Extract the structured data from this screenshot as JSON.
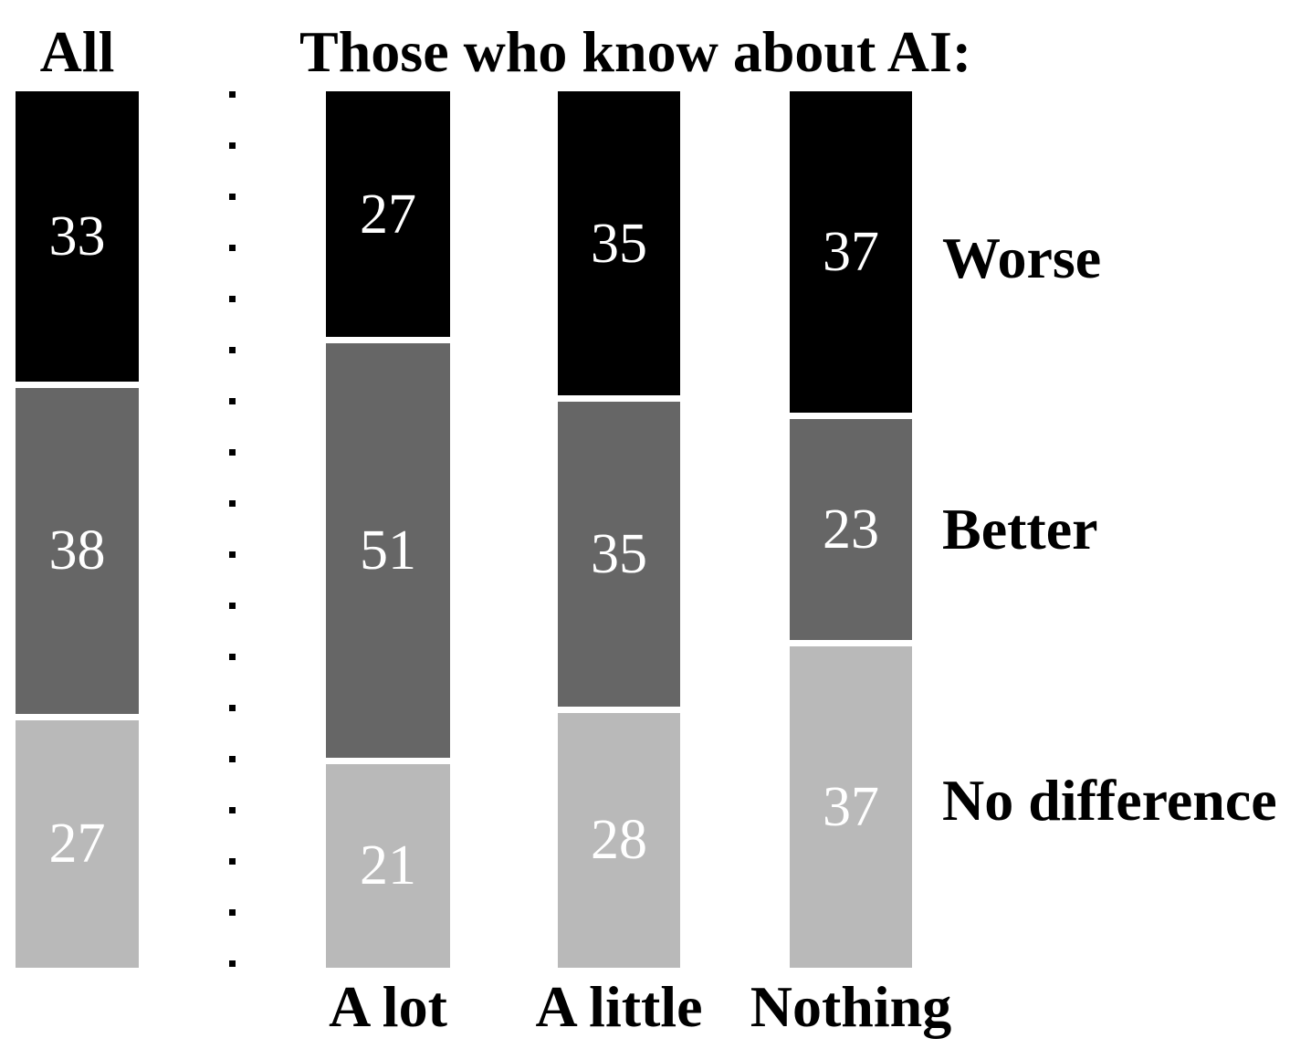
{
  "chart_data": {
    "type": "bar",
    "stacked": true,
    "orientation": "vertical",
    "title": "Those who know about AI:",
    "categories": [
      "All",
      "A lot",
      "A little",
      "Nothing"
    ],
    "category_label_position": [
      "top",
      "bottom",
      "bottom",
      "bottom"
    ],
    "series": [
      {
        "name": "Worse",
        "color": "#000000",
        "values": [
          33,
          27,
          35,
          37
        ]
      },
      {
        "name": "Better",
        "color": "#666666",
        "values": [
          38,
          51,
          35,
          23
        ]
      },
      {
        "name": "No difference",
        "color": "#b9b9b9",
        "values": [
          27,
          21,
          28,
          37
        ]
      }
    ],
    "value_label_style": "white serif numerals centered inside each segment",
    "legend_position": "right",
    "grid": false,
    "axes": "none",
    "separator": "vertical dotted line between the All column and the three AI-knowledge columns",
    "note": "values are percentages; each column is normalized to the same full height"
  }
}
